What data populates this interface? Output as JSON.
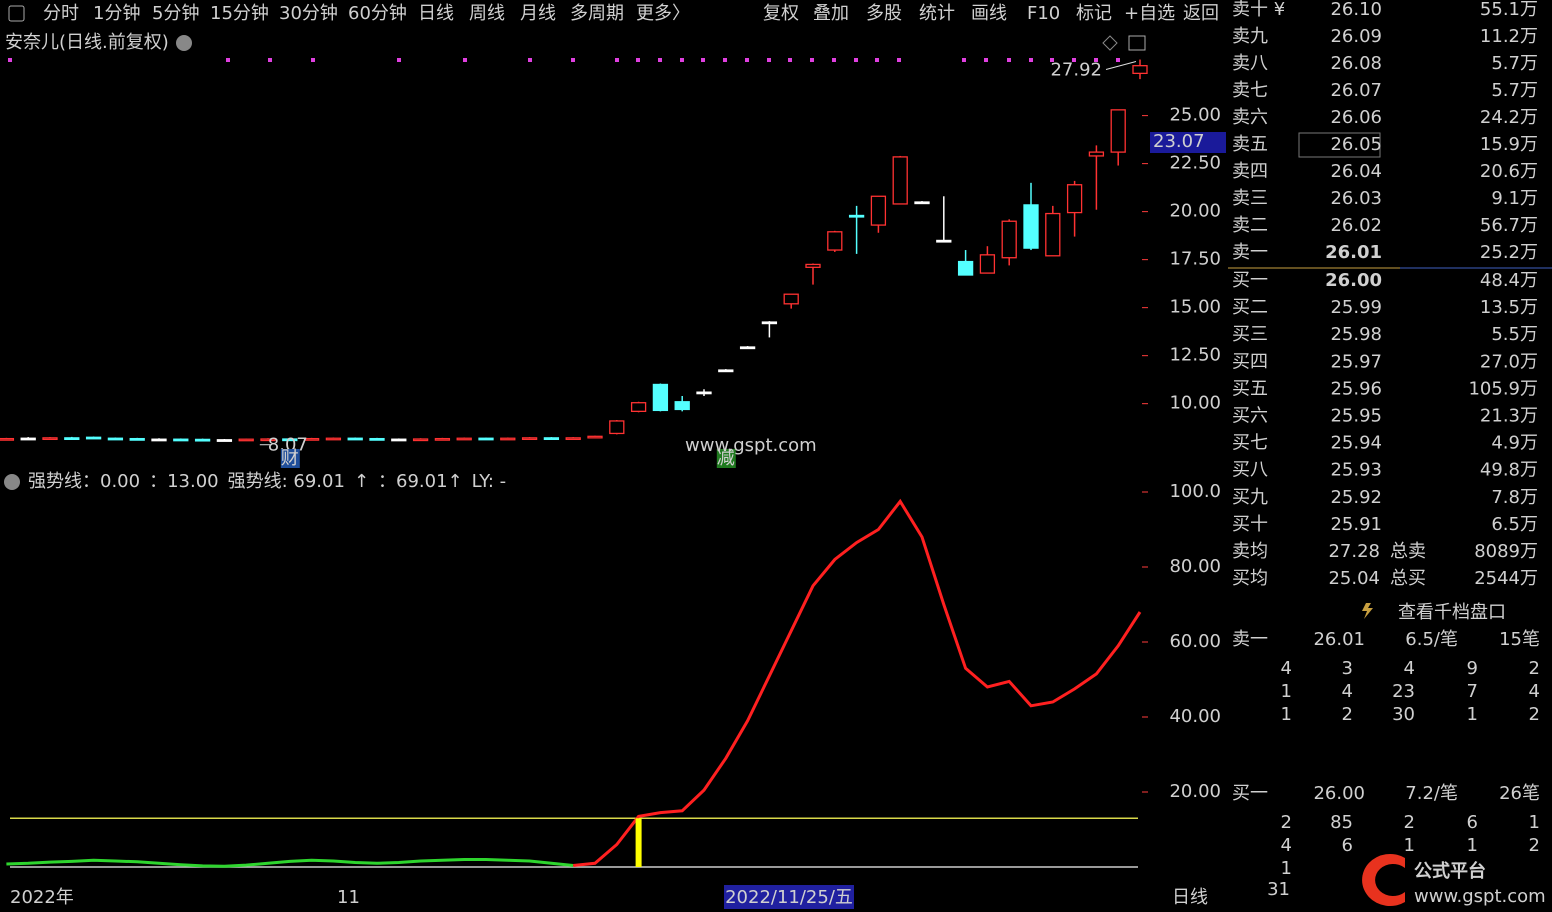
{
  "toolbar": {
    "left": [
      "分时",
      "1分钟",
      "5分钟",
      "15分钟",
      "30分钟",
      "60分钟",
      "日线",
      "周线",
      "月线",
      "多周期",
      "更多〉"
    ],
    "active_index": 6,
    "right": [
      "复权",
      "叠加",
      "多股",
      "统计",
      "画线",
      "F10",
      "标记",
      "+自选",
      "返回"
    ]
  },
  "stock_title": "安奈儿(日线.前复权)",
  "cursor_price": "23.07",
  "watermark": "www.gspt.com",
  "date_axis": [
    "2022年",
    "11"
  ],
  "cursor_date": "2022/11/25/五",
  "period": "日线",
  "chart_data": [
    {
      "type": "candlestick",
      "open": [
        8.15,
        8.2,
        8.18,
        8.22,
        8.25,
        8.2,
        8.18,
        8.15,
        8.15,
        8.14,
        8.12,
        8.12,
        8.15,
        8.16,
        8.14,
        8.18,
        8.2,
        8.18,
        8.15,
        8.15,
        8.16,
        8.18,
        8.2,
        8.18,
        8.2,
        8.22,
        8.2,
        8.22,
        8.45,
        9.6,
        11.0,
        10.1,
        10.6,
        11.75,
        12.95,
        14.25,
        15.2,
        17.1,
        18.0,
        19.8,
        19.3,
        20.4,
        20.5,
        18.5,
        17.4,
        16.8,
        17.6,
        20.35,
        17.7,
        19.95,
        22.9,
        23.1,
        27.2
      ],
      "high": [
        8.22,
        8.26,
        8.26,
        8.27,
        8.29,
        8.24,
        8.22,
        8.2,
        8.19,
        8.18,
        8.16,
        8.18,
        8.2,
        8.2,
        8.22,
        8.24,
        8.24,
        8.22,
        8.19,
        8.2,
        8.22,
        8.24,
        8.23,
        8.24,
        8.26,
        8.26,
        8.26,
        8.33,
        9.15,
        10.1,
        11.05,
        10.4,
        10.75,
        11.8,
        13.0,
        14.3,
        15.7,
        17.3,
        19.0,
        20.3,
        20.8,
        22.9,
        20.55,
        20.8,
        18.0,
        18.2,
        19.6,
        21.5,
        20.3,
        21.6,
        23.45,
        25.3,
        27.92
      ],
      "low": [
        8.12,
        8.15,
        8.14,
        8.16,
        8.17,
        8.14,
        8.12,
        8.11,
        8.1,
        8.09,
        8.09,
        8.09,
        8.11,
        8.07,
        8.1,
        8.14,
        8.14,
        8.12,
        8.11,
        8.12,
        8.13,
        8.15,
        8.14,
        8.15,
        8.17,
        8.16,
        8.17,
        8.19,
        8.4,
        9.55,
        9.6,
        9.6,
        10.4,
        11.7,
        12.9,
        13.45,
        14.95,
        16.2,
        17.9,
        17.8,
        18.9,
        20.4,
        20.45,
        18.5,
        16.7,
        16.8,
        17.2,
        18.0,
        17.7,
        18.7,
        20.1,
        22.4,
        26.9
      ],
      "close": [
        8.18,
        8.2,
        8.22,
        8.2,
        8.2,
        8.18,
        8.15,
        8.15,
        8.14,
        8.12,
        8.12,
        8.15,
        8.16,
        8.14,
        8.18,
        8.2,
        8.18,
        8.15,
        8.15,
        8.16,
        8.18,
        8.2,
        8.18,
        8.2,
        8.22,
        8.2,
        8.22,
        8.3,
        9.1,
        10.05,
        9.65,
        9.7,
        10.6,
        11.75,
        12.95,
        14.25,
        15.7,
        17.25,
        18.95,
        19.75,
        20.8,
        22.85,
        20.5,
        18.5,
        16.7,
        17.75,
        19.5,
        18.1,
        19.9,
        21.4,
        23.1,
        25.3,
        27.6
      ],
      "up_color": "#ff3232",
      "down_color": "#54ffff",
      "flat_color": "#ffffff",
      "ylim": [
        7.9,
        28.0
      ],
      "yticks": [
        {
          "value": 10,
          "label": "10.00"
        },
        {
          "value": 12.5,
          "label": "12.50"
        },
        {
          "value": 15,
          "label": "15.00"
        },
        {
          "value": 17.5,
          "label": "17.50"
        },
        {
          "value": 20,
          "label": "20.00"
        },
        {
          "value": 22.5,
          "label": "22.50"
        },
        {
          "value": 25,
          "label": "25.00"
        }
      ],
      "annotations": [
        {
          "label": "27.92",
          "value": 27.92,
          "index": 52
        },
        {
          "label": "8.07",
          "value": 8.07,
          "index": 13
        }
      ],
      "markers": [
        {
          "text": "财",
          "index": 13,
          "color": "#1f4e9a"
        },
        {
          "text": "减",
          "index": 33,
          "color": "#1f7a1f"
        }
      ]
    },
    {
      "type": "line",
      "legend": [
        {
          "text": "强势线：0.00",
          "color": "#d0d0d0"
        },
        {
          "text": "：13.00",
          "color": "#ffff40"
        },
        {
          "text": "强势线: 69.01",
          "color": "#2ed52e"
        },
        {
          "text": "↑",
          "color": "#ff3232"
        },
        {
          "text": "：69.01↑",
          "color": "#ff3232"
        },
        {
          "text": "LY: -",
          "color": "#ffff40"
        }
      ],
      "series": [
        {
          "color": "#2ed52e",
          "values": [
            0.8,
            1.0,
            1.3,
            1.5,
            1.8,
            1.6,
            1.4,
            1.0,
            0.6,
            0.3,
            0.2,
            0.5,
            1.0,
            1.5,
            1.8,
            1.6,
            1.2,
            1.0,
            1.2,
            1.6,
            1.8,
            2.0,
            2.0,
            1.8,
            1.6,
            1.0,
            0.4,
            null,
            null,
            null,
            null,
            null,
            null,
            null,
            null,
            null,
            null,
            null,
            null,
            null,
            null,
            null,
            null,
            null,
            null,
            null,
            null,
            null,
            null,
            null,
            null,
            null,
            null
          ]
        },
        {
          "color": "#ff2020",
          "values": [
            null,
            null,
            null,
            null,
            null,
            null,
            null,
            null,
            null,
            null,
            null,
            null,
            null,
            null,
            null,
            null,
            null,
            null,
            null,
            null,
            null,
            null,
            null,
            null,
            null,
            null,
            0.4,
            1.0,
            6,
            13.5,
            14.5,
            15,
            20.5,
            29,
            39,
            51,
            63,
            75,
            82,
            86.5,
            90,
            97.5,
            88,
            70,
            53,
            48,
            49.5,
            43,
            44,
            47.5,
            51.5,
            59,
            68
          ]
        }
      ],
      "signal": {
        "color": "#ffff00",
        "values": [
          null,
          null,
          null,
          null,
          null,
          null,
          null,
          null,
          null,
          null,
          null,
          null,
          null,
          null,
          null,
          null,
          null,
          null,
          null,
          null,
          null,
          null,
          null,
          null,
          null,
          null,
          null,
          null,
          null,
          13,
          null,
          null,
          null,
          null,
          null,
          null,
          null,
          null,
          null,
          null,
          null,
          null,
          null,
          null,
          null,
          null,
          null,
          null,
          null,
          null,
          null,
          null,
          null
        ]
      },
      "hlines": [
        {
          "value": 13,
          "color": "#d8d84a"
        },
        {
          "value": 0,
          "color": "#cccccc"
        }
      ],
      "ylim": [
        0,
        100
      ],
      "yticks": [
        {
          "value": 20,
          "label": "20.00"
        },
        {
          "value": 40,
          "label": "40.00"
        },
        {
          "value": 60,
          "label": "60.00"
        },
        {
          "value": 80,
          "label": "80.00"
        },
        {
          "value": 100,
          "label": "100.0"
        }
      ]
    }
  ],
  "order_book": {
    "asks": [
      [
        "卖十 ¥",
        "26.10",
        "55.1万"
      ],
      [
        "卖九",
        "26.09",
        "11.2万"
      ],
      [
        "卖八",
        "26.08",
        "5.7万"
      ],
      [
        "卖七",
        "26.07",
        "5.7万"
      ],
      [
        "卖六",
        "26.06",
        "24.2万"
      ],
      [
        "卖五",
        "26.05",
        "15.9万"
      ],
      [
        "卖四",
        "26.04",
        "20.6万"
      ],
      [
        "卖三",
        "26.03",
        "9.1万"
      ],
      [
        "卖二",
        "26.02",
        "56.7万"
      ],
      [
        "卖一",
        "26.01",
        "25.2万"
      ]
    ],
    "bids": [
      [
        "买一",
        "26.00",
        "48.4万"
      ],
      [
        "买二",
        "25.99",
        "13.5万"
      ],
      [
        "买三",
        "25.98",
        "5.5万"
      ],
      [
        "买四",
        "25.97",
        "27.0万"
      ],
      [
        "买五",
        "25.96",
        "105.9万"
      ],
      [
        "买六",
        "25.95",
        "21.3万"
      ],
      [
        "买七",
        "25.94",
        "4.9万"
      ],
      [
        "买八",
        "25.93",
        "49.8万"
      ],
      [
        "买九",
        "25.92",
        "7.8万"
      ],
      [
        "买十",
        "25.91",
        "6.5万"
      ]
    ],
    "averages": [
      [
        "卖均",
        "27.28",
        "总卖",
        "8089万"
      ],
      [
        "买均",
        "25.04",
        "总买",
        "2544万"
      ]
    ]
  },
  "queue_link": "查看千档盘口",
  "queues": [
    {
      "header": [
        "卖一",
        "26.01",
        "6.5/笔",
        "15笔"
      ],
      "rows": [
        [
          "4",
          "3",
          "4",
          "9",
          "2"
        ],
        [
          "1",
          "4",
          "23",
          "7",
          "4"
        ],
        [
          "1",
          "2",
          "30",
          "1",
          "2"
        ]
      ]
    },
    {
      "header": [
        "买一",
        "26.00",
        "7.2/笔",
        "26笔"
      ],
      "rows": [
        [
          "2",
          "85",
          "2",
          "6",
          "1"
        ],
        [
          "4",
          "6",
          "1",
          "1",
          "2"
        ],
        [
          "1"
        ]
      ]
    }
  ],
  "queue_total": "31",
  "logo": {
    "name": "公式平台",
    "url": "www.gspt.com"
  }
}
